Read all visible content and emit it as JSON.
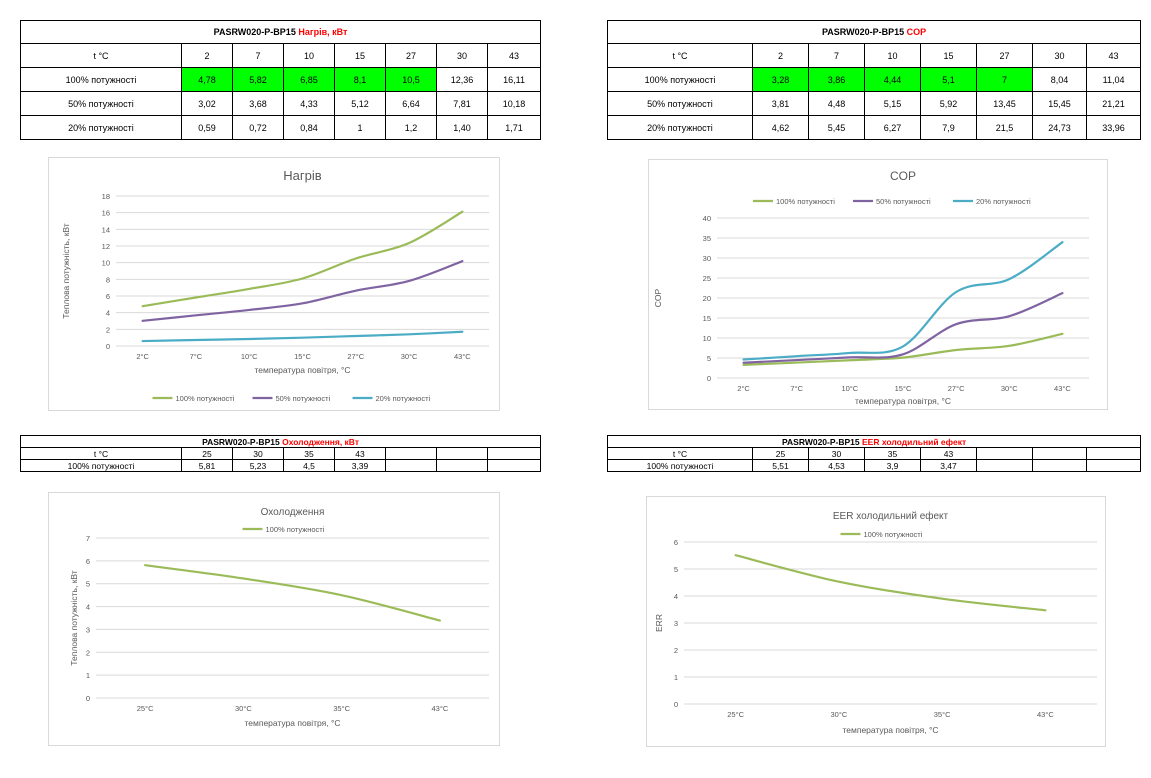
{
  "tables": [
    {
      "title_main": "PASRW020-P-BP15",
      "title_accent": "Нагрів, кВт",
      "header_label": "t °C",
      "headers": [
        "2",
        "7",
        "10",
        "15",
        "27",
        "30",
        "43"
      ],
      "rows": [
        {
          "label": "100% потужності",
          "values": [
            "4,78",
            "5,82",
            "6,85",
            "8,1",
            "10,5",
            "12,36",
            "16,11"
          ]
        },
        {
          "label": "50% потужності",
          "values": [
            "3,02",
            "3,68",
            "4,33",
            "5,12",
            "6,64",
            "7,81",
            "10,18"
          ]
        },
        {
          "label": "20% потужності",
          "values": [
            "0,59",
            "0,72",
            "0,84",
            "1",
            "1,2",
            "1,40",
            "1,71"
          ]
        }
      ]
    },
    {
      "title_main": "PASRW020-P-BP15",
      "title_accent": "COP",
      "header_label": "t °C",
      "headers": [
        "2",
        "7",
        "10",
        "15",
        "27",
        "30",
        "43"
      ],
      "rows": [
        {
          "label": "100% потужності",
          "values": [
            "3,28",
            "3,86",
            "4,44",
            "5,1",
            "7",
            "8,04",
            "11,04"
          ]
        },
        {
          "label": "50% потужності",
          "values": [
            "3,81",
            "4,48",
            "5,15",
            "5,92",
            "13,45",
            "15,45",
            "21,21"
          ]
        },
        {
          "label": "20% потужності",
          "values": [
            "4,62",
            "5,45",
            "6,27",
            "7,9",
            "21,5",
            "24,73",
            "33,96"
          ]
        }
      ]
    },
    {
      "title_main": "PASRW020-P-BP15",
      "title_accent": "Охолодження, кВт",
      "header_label": "t °C",
      "headers": [
        "25",
        "30",
        "35",
        "43",
        "",
        "",
        ""
      ],
      "rows": [
        {
          "label": "100% потужності",
          "values": [
            "5,81",
            "5,23",
            "4,5",
            "3,39",
            "",
            "",
            ""
          ]
        }
      ]
    },
    {
      "title_main": "PASRW020-P-BP15",
      "title_accent": "EER холодильний ефект",
      "header_label": "t °C",
      "headers": [
        "25",
        "30",
        "35",
        "43",
        "",
        "",
        ""
      ],
      "rows": [
        {
          "label": "100% потужності",
          "values": [
            "5,51",
            "4,53",
            "3,9",
            "3,47",
            "",
            "",
            ""
          ]
        }
      ]
    }
  ],
  "colors": {
    "series1": "#9bbb59",
    "series2": "#8064a2",
    "series3": "#4bacc6",
    "highlight": "#00ff00",
    "accent_text": "#ff0000",
    "grid": "#d9d9d9",
    "axis_text": "#595959"
  },
  "chart_data": [
    {
      "type": "line",
      "title": "Нагрів",
      "xlabel": "температура повітря, °C",
      "ylabel": "Теплова потужність, кВт",
      "categories": [
        "2°C",
        "7°C",
        "10°C",
        "15°C",
        "27°C",
        "30°C",
        "43°C"
      ],
      "ylim": [
        0,
        18
      ],
      "yticks": [
        "0",
        "2",
        "4",
        "6",
        "8",
        "10",
        "12",
        "14",
        "16",
        "18"
      ],
      "legend_position": "bottom",
      "grid": true,
      "series": [
        {
          "name": "100% потужності",
          "values": [
            4.78,
            5.82,
            6.85,
            8.1,
            10.5,
            12.36,
            16.11
          ]
        },
        {
          "name": "50% потужності",
          "values": [
            3.02,
            3.68,
            4.33,
            5.12,
            6.64,
            7.81,
            10.18
          ]
        },
        {
          "name": "20% потужності",
          "values": [
            0.59,
            0.72,
            0.84,
            1,
            1.2,
            1.4,
            1.71
          ]
        }
      ]
    },
    {
      "type": "line",
      "title": "COP",
      "xlabel": "температура повітря, °C",
      "ylabel": "COP",
      "categories": [
        "2°C",
        "7°C",
        "10°C",
        "15°C",
        "27°C",
        "30°C",
        "43°C"
      ],
      "ylim": [
        0,
        40
      ],
      "yticks": [
        "0",
        "5",
        "10",
        "15",
        "20",
        "25",
        "30",
        "35",
        "40"
      ],
      "legend_position": "top",
      "grid": true,
      "series": [
        {
          "name": "100% потужності",
          "values": [
            3.28,
            3.86,
            4.44,
            5.1,
            7,
            8.04,
            11.04
          ]
        },
        {
          "name": "50% потужності",
          "values": [
            3.81,
            4.48,
            5.15,
            5.92,
            13.45,
            15.45,
            21.21
          ]
        },
        {
          "name": "20% потужності",
          "values": [
            4.62,
            5.45,
            6.27,
            7.9,
            21.5,
            24.73,
            33.96
          ]
        }
      ]
    },
    {
      "type": "line",
      "title": "Охолодження",
      "xlabel": "температура повітря, °C",
      "ylabel": "Теплова потужність, кВт",
      "categories": [
        "25°C",
        "30°C",
        "35°C",
        "43°C"
      ],
      "ylim": [
        0,
        7
      ],
      "yticks": [
        "0",
        "1",
        "2",
        "3",
        "4",
        "5",
        "6",
        "7"
      ],
      "legend_position": "top",
      "grid": true,
      "series": [
        {
          "name": "100% потужності",
          "values": [
            5.81,
            5.23,
            4.5,
            3.39
          ]
        }
      ]
    },
    {
      "type": "line",
      "title": "EER холодильний ефект",
      "xlabel": "температура повітря, °C",
      "ylabel": "ERR",
      "categories": [
        "25°C",
        "30°C",
        "35°C",
        "43°C"
      ],
      "ylim": [
        0,
        6
      ],
      "yticks": [
        "0",
        "1",
        "2",
        "3",
        "4",
        "5",
        "6"
      ],
      "legend_position": "top",
      "grid": true,
      "series": [
        {
          "name": "100% потужності",
          "values": [
            5.51,
            4.53,
            3.9,
            3.47
          ]
        }
      ]
    }
  ]
}
